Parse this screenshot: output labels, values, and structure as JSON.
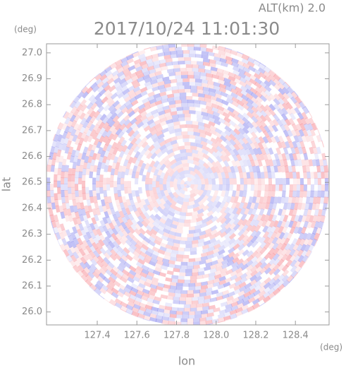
{
  "chart_data": {
    "type": "ppi",
    "title": "2017/10/24 11:01:30",
    "annotation": "ALT(km) 2.0",
    "x_label": "lon",
    "y_label": "lat",
    "x_unit": "(deg)",
    "y_unit": "(deg)",
    "xlim": [
      127.144,
      128.57
    ],
    "ylim": [
      25.95,
      27.035
    ],
    "xticks": [
      127.4,
      127.6,
      127.8,
      {
        "value": 128.0,
        "label": "128.0"
      },
      128.2,
      128.4
    ],
    "yticks": [
      {
        "value": 26.0,
        "label": "26.0"
      },
      26.1,
      26.2,
      26.3,
      26.4,
      26.5,
      26.6,
      26.7,
      26.8,
      26.9,
      {
        "value": 27.0,
        "label": "27.0"
      }
    ]
  }
}
